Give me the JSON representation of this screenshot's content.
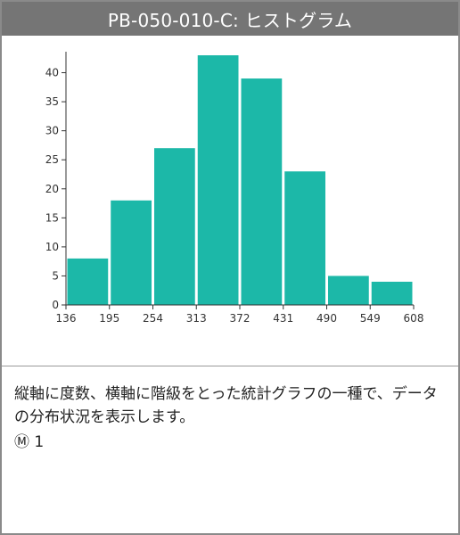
{
  "card": {
    "title": "PB-050-010-C: ヒストグラム",
    "description": "縦軸に度数、横軸に階級をとった統計グラフの一種で、データの分布状況を表示します。",
    "meta": {
      "icon": "circled-m-icon",
      "marker": "Ⓜ",
      "value": "1"
    }
  },
  "colors": {
    "bar": "#1cb8a8",
    "title_bar": "#757575",
    "axis": "#333333"
  },
  "chart_data": {
    "type": "bar",
    "title": "",
    "xlabel": "",
    "ylabel": "",
    "bin_edges": [
      136,
      195,
      254,
      313,
      372,
      431,
      490,
      549,
      608
    ],
    "values": [
      8,
      18,
      27,
      43,
      39,
      23,
      5,
      4
    ],
    "ylim": [
      0,
      43
    ],
    "yticks": [
      0,
      5,
      10,
      15,
      20,
      25,
      30,
      35,
      40
    ],
    "grid": false,
    "legend": "none"
  }
}
